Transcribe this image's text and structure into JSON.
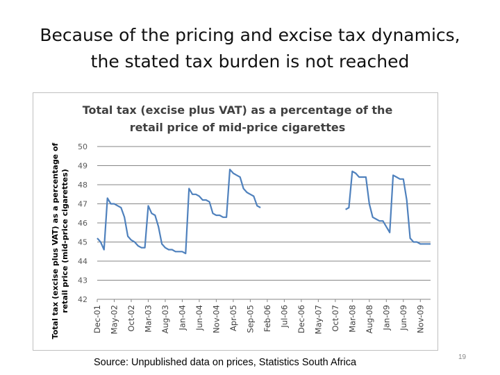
{
  "slide": {
    "title_line1": "Because of the pricing and excise tax dynamics,",
    "title_line2": "the stated tax burden is not reached",
    "source": "Source: Unpublished data on prices, Statistics South Africa",
    "page_number": "19"
  },
  "chart_data": {
    "type": "line",
    "title_line1": "Total tax (excise plus VAT) as a percentage of the",
    "title_line2": "retail price of mid-price cigarettes",
    "ylabel_line1": "Total tax (excise plus VAT) as a percentage of",
    "ylabel_line2": "retail price (mid-price cigarettes)",
    "xlabel": "",
    "ylim": [
      42,
      50
    ],
    "yticks": [
      "42",
      "43",
      "44",
      "45",
      "46",
      "47",
      "48",
      "49",
      "50"
    ],
    "xticks": [
      "Dec-01",
      "May-02",
      "Oct-02",
      "Mar-03",
      "Aug-03",
      "Jan-04",
      "Jun-04",
      "Nov-04",
      "Apr-05",
      "Sep-05",
      "Feb-06",
      "Jul-06",
      "Dec-06",
      "May-07",
      "Oct-07",
      "Mar-08",
      "Aug-08",
      "Jan-09",
      "Jun-09",
      "Nov-09"
    ],
    "gridlines": "horizontal",
    "line_color": "#4f81bd",
    "series": [
      {
        "segments": [
          [
            [
              "Dec-01",
              45.2
            ],
            [
              "Jan-02",
              45.0
            ],
            [
              "Feb-02",
              44.6
            ],
            [
              "Mar-02",
              47.3
            ],
            [
              "Apr-02",
              47.0
            ],
            [
              "May-02",
              47.0
            ],
            [
              "Jun-02",
              46.9
            ],
            [
              "Jul-02",
              46.8
            ],
            [
              "Aug-02",
              46.3
            ],
            [
              "Sep-02",
              45.3
            ],
            [
              "Oct-02",
              45.1
            ],
            [
              "Nov-02",
              45.0
            ],
            [
              "Dec-02",
              44.8
            ],
            [
              "Jan-03",
              44.7
            ],
            [
              "Feb-03",
              44.7
            ],
            [
              "Mar-03",
              46.9
            ],
            [
              "Apr-03",
              46.5
            ],
            [
              "May-03",
              46.4
            ],
            [
              "Jun-03",
              45.8
            ],
            [
              "Jul-03",
              44.9
            ],
            [
              "Aug-03",
              44.7
            ],
            [
              "Sep-03",
              44.6
            ],
            [
              "Oct-03",
              44.6
            ],
            [
              "Nov-03",
              44.5
            ],
            [
              "Dec-03",
              44.5
            ],
            [
              "Jan-04",
              44.5
            ],
            [
              "Feb-04",
              44.4
            ],
            [
              "Mar-04",
              47.8
            ],
            [
              "Apr-04",
              47.5
            ],
            [
              "May-04",
              47.5
            ],
            [
              "Jun-04",
              47.4
            ],
            [
              "Jul-04",
              47.2
            ],
            [
              "Aug-04",
              47.2
            ],
            [
              "Sep-04",
              47.1
            ],
            [
              "Oct-04",
              46.5
            ],
            [
              "Nov-04",
              46.4
            ],
            [
              "Dec-04",
              46.4
            ],
            [
              "Jan-05",
              46.3
            ],
            [
              "Feb-05",
              46.3
            ],
            [
              "Mar-05",
              48.8
            ],
            [
              "Apr-05",
              48.6
            ],
            [
              "May-05",
              48.5
            ],
            [
              "Jun-05",
              48.4
            ],
            [
              "Jul-05",
              47.8
            ],
            [
              "Aug-05",
              47.6
            ],
            [
              "Sep-05",
              47.5
            ],
            [
              "Oct-05",
              47.4
            ],
            [
              "Nov-05",
              46.9
            ],
            [
              "Dec-05",
              46.8
            ]
          ],
          [
            [
              "Jan-08",
              46.7
            ],
            [
              "Feb-08",
              46.8
            ],
            [
              "Mar-08",
              48.7
            ],
            [
              "Apr-08",
              48.6
            ],
            [
              "May-08",
              48.4
            ],
            [
              "Jun-08",
              48.4
            ],
            [
              "Jul-08",
              48.4
            ],
            [
              "Aug-08",
              47.0
            ],
            [
              "Sep-08",
              46.3
            ],
            [
              "Oct-08",
              46.2
            ],
            [
              "Nov-08",
              46.1
            ],
            [
              "Dec-08",
              46.1
            ],
            [
              "Jan-09",
              45.8
            ],
            [
              "Feb-09",
              45.5
            ],
            [
              "Mar-09",
              48.5
            ],
            [
              "Apr-09",
              48.4
            ],
            [
              "May-09",
              48.3
            ],
            [
              "Jun-09",
              48.3
            ],
            [
              "Jul-09",
              47.2
            ],
            [
              "Aug-09",
              45.2
            ],
            [
              "Sep-09",
              45.0
            ],
            [
              "Oct-09",
              45.0
            ],
            [
              "Nov-09",
              44.9
            ],
            [
              "Dec-09",
              44.9
            ],
            [
              "Jan-10",
              44.9
            ],
            [
              "Feb-10",
              44.9
            ]
          ]
        ]
      }
    ]
  }
}
